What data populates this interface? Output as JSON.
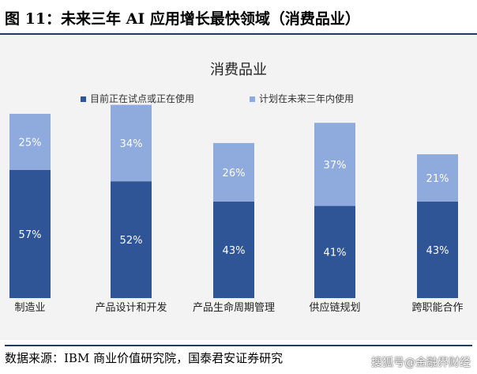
{
  "figure_title": "图 11：未来三年 AI 应用增长最快领域（消费品业）",
  "source_text": "数据来源：IBM 商业价值研究院，国泰君安证券研究",
  "watermark": "搜狐号@金融界财经",
  "chart_data": {
    "type": "bar",
    "stacked": true,
    "title": "消费品业",
    "categories": [
      "制造业",
      "产品设计和开发",
      "产品生命周期管理",
      "供应链规划",
      "跨职能合作"
    ],
    "series": [
      {
        "name": "目前正在试点或正在使用",
        "color": "#2f5597",
        "values": [
          57,
          52,
          43,
          41,
          43
        ],
        "labels": [
          "57%",
          "52%",
          "43%",
          "41%",
          "43%"
        ]
      },
      {
        "name": "计划在未来三年内使用",
        "color": "#8faadc",
        "values": [
          25,
          34,
          26,
          37,
          21
        ],
        "labels": [
          "25%",
          "34%",
          "26%",
          "37%",
          "21%"
        ]
      }
    ],
    "ylim": [
      0,
      95
    ],
    "grid": false,
    "legend_position": "top-center"
  }
}
